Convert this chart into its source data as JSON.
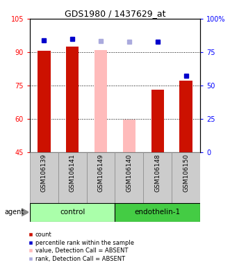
{
  "title": "GDS1980 / 1437629_at",
  "samples": [
    "GSM106139",
    "GSM106141",
    "GSM106149",
    "GSM106140",
    "GSM106148",
    "GSM106150"
  ],
  "groups": [
    {
      "label": "control",
      "color_light": "#ccffcc",
      "color_dark": "#44cc44",
      "start": 0,
      "end": 2
    },
    {
      "label": "endothelin-1",
      "color_light": "#44ee44",
      "color_dark": "#22aa22",
      "start": 3,
      "end": 5
    }
  ],
  "bar_data": {
    "GSM106139": {
      "count": 90.5,
      "type": "present",
      "rank": 84
    },
    "GSM106141": {
      "count": 92.5,
      "type": "present",
      "rank": 85
    },
    "GSM106149": {
      "type": "absent",
      "value": 91.0,
      "rank": 83.5
    },
    "GSM106140": {
      "type": "absent",
      "value": 59.5,
      "rank": 83.0
    },
    "GSM106148": {
      "count": 73.0,
      "type": "present",
      "rank": 83
    },
    "GSM106150": {
      "count": 77.0,
      "type": "present",
      "rank": 57
    }
  },
  "ylim_left": [
    45,
    105
  ],
  "ylim_right": [
    0,
    100
  ],
  "yticks_left": [
    45,
    60,
    75,
    90,
    105
  ],
  "yticks_right": [
    0,
    25,
    50,
    75,
    100
  ],
  "ytick_labels_left": [
    "45",
    "60",
    "75",
    "90",
    "105"
  ],
  "ytick_labels_right": [
    "0",
    "25",
    "50",
    "75",
    "100%"
  ],
  "bar_bottom": 45,
  "bar_color_present": "#cc1100",
  "bar_color_absent": "#ffbbbb",
  "rank_color_present": "#0000cc",
  "rank_color_absent": "#aaaadd",
  "legend_items": [
    {
      "label": "count",
      "color": "#cc1100"
    },
    {
      "label": "percentile rank within the sample",
      "color": "#0000cc"
    },
    {
      "label": "value, Detection Call = ABSENT",
      "color": "#ffbbbb"
    },
    {
      "label": "rank, Detection Call = ABSENT",
      "color": "#aaaadd"
    }
  ],
  "agent_label": "agent",
  "bar_width": 0.45,
  "sample_box_color": "#cccccc",
  "group_box_color_control": "#aaffaa",
  "group_box_color_endothelin": "#44cc44"
}
